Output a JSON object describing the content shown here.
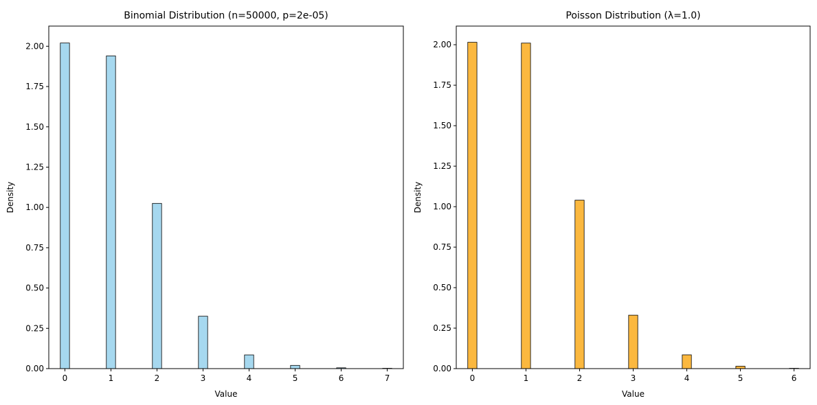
{
  "chart_data": [
    {
      "type": "bar",
      "title": "Binomial Distribution (n=50000, p=2e-05)",
      "xlabel": "Value",
      "ylabel": "Density",
      "xlim": [
        -0.35,
        7.35
      ],
      "ylim": [
        0,
        2.125
      ],
      "xticks": [
        0,
        1,
        2,
        3,
        4,
        5,
        6,
        7
      ],
      "yticks": [
        "0.00",
        "0.25",
        "0.50",
        "0.75",
        "1.00",
        "1.25",
        "1.50",
        "1.75",
        "2.00"
      ],
      "bar_width": 0.2,
      "bar_color": "#a6d8ef",
      "edge_color": "#000000",
      "grid": false,
      "x": [
        0,
        1,
        2,
        3,
        4,
        5,
        6,
        7
      ],
      "values": [
        2.02,
        1.94,
        1.025,
        0.325,
        0.085,
        0.02,
        0.005,
        0.002
      ]
    },
    {
      "type": "bar",
      "title": "Poisson Distribution (λ=1.0)",
      "xlabel": "Value",
      "ylabel": "Density",
      "xlim": [
        -0.3,
        6.3
      ],
      "ylim": [
        0,
        2.115
      ],
      "xticks": [
        0,
        1,
        2,
        3,
        4,
        5,
        6
      ],
      "yticks": [
        "0.00",
        "0.25",
        "0.50",
        "0.75",
        "1.00",
        "1.25",
        "1.50",
        "1.75",
        "2.00"
      ],
      "bar_width": 0.171,
      "bar_color": "#fbb83f",
      "edge_color": "#000000",
      "grid": false,
      "x": [
        0,
        1,
        2,
        3,
        4,
        5,
        6
      ],
      "values": [
        2.015,
        2.01,
        1.04,
        0.33,
        0.085,
        0.015,
        0.002
      ]
    }
  ]
}
